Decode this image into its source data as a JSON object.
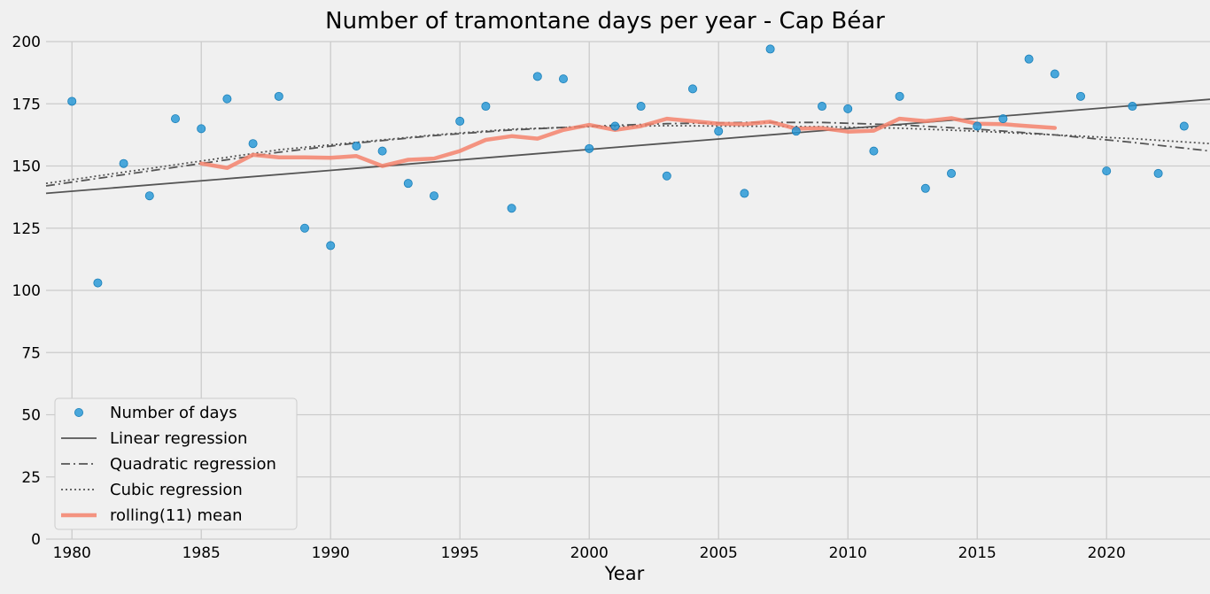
{
  "chart_data": {
    "type": "scatter",
    "title": "Number of tramontane days per year - Cap Béar",
    "xlabel": "Year",
    "ylabel": "",
    "xlim": [
      1979,
      2024
    ],
    "ylim": [
      0,
      200
    ],
    "xticks": [
      1980,
      1985,
      1990,
      1995,
      2000,
      2005,
      2010,
      2015,
      2020
    ],
    "yticks": [
      0,
      25,
      50,
      75,
      100,
      125,
      150,
      175,
      200
    ],
    "grid": true,
    "legend_position": "lower-left",
    "colors": {
      "background": "#f0f0f0",
      "grid": "#cbcbcb",
      "points": "#1f95d6",
      "regression": "#555555",
      "rolling": "#f5826c"
    },
    "series": [
      {
        "name": "Number of days",
        "kind": "scatter",
        "x": [
          1980,
          1981,
          1982,
          1983,
          1984,
          1985,
          1986,
          1987,
          1988,
          1989,
          1990,
          1991,
          1992,
          1993,
          1994,
          1995,
          1996,
          1997,
          1998,
          1999,
          2000,
          2001,
          2002,
          2003,
          2004,
          2005,
          2006,
          2007,
          2008,
          2009,
          2010,
          2011,
          2012,
          2013,
          2014,
          2015,
          2016,
          2017,
          2018,
          2019,
          2020,
          2021,
          2022,
          2023
        ],
        "y": [
          176,
          103,
          151,
          138,
          169,
          165,
          177,
          159,
          178,
          125,
          118,
          158,
          156,
          143,
          138,
          168,
          174,
          133,
          186,
          185,
          157,
          166,
          174,
          146,
          181,
          164,
          139,
          197,
          164,
          174,
          173,
          156,
          178,
          141,
          147,
          166,
          169,
          193,
          187,
          178,
          148,
          174,
          147,
          166
        ]
      },
      {
        "name": "Linear regression",
        "kind": "line",
        "style": "solid",
        "x": [
          1979,
          2024
        ],
        "y": [
          139,
          176.8
        ]
      },
      {
        "name": "Quadratic regression",
        "kind": "line",
        "style": "dashdot",
        "x": [
          1979,
          1982,
          1985,
          1988,
          1991,
          1994,
          1997,
          2000,
          2003,
          2006,
          2009,
          2012,
          2015,
          2018,
          2021,
          2024
        ],
        "y": [
          142,
          146.5,
          151,
          155.5,
          159.2,
          162.2,
          164.5,
          166,
          167,
          167.5,
          167.5,
          166.5,
          164.8,
          162.5,
          159.5,
          156
        ]
      },
      {
        "name": "Cubic regression",
        "kind": "line",
        "style": "dotted",
        "x": [
          1979,
          1982,
          1985,
          1988,
          1991,
          1994,
          1997,
          2000,
          2003,
          2006,
          2009,
          2012,
          2015,
          2018,
          2021,
          2024
        ],
        "y": [
          143,
          147.5,
          152,
          156.5,
          159.5,
          162.5,
          164.8,
          165.8,
          166.2,
          166,
          165.8,
          165.2,
          164,
          162.5,
          161,
          159
        ]
      },
      {
        "name": "rolling(11) mean",
        "kind": "line",
        "style": "thick",
        "x": [
          1985,
          1986,
          1987,
          1988,
          1989,
          1990,
          1991,
          1992,
          1993,
          1994,
          1995,
          1996,
          1997,
          1998,
          1999,
          2000,
          2001,
          2002,
          2003,
          2004,
          2005,
          2006,
          2007,
          2008,
          2009,
          2010,
          2011,
          2012,
          2013,
          2014,
          2015,
          2016,
          2017,
          2018
        ],
        "y": [
          151,
          149.2,
          154.5,
          153.5,
          153.5,
          153.3,
          154,
          150,
          152.5,
          153,
          156,
          160.5,
          162,
          161,
          164.5,
          166.5,
          164.5,
          166,
          169,
          168,
          167,
          166.8,
          167.8,
          165,
          165.2,
          163.8,
          164.2,
          169,
          168,
          169.2,
          167,
          166.8,
          166,
          165.3
        ]
      }
    ]
  }
}
